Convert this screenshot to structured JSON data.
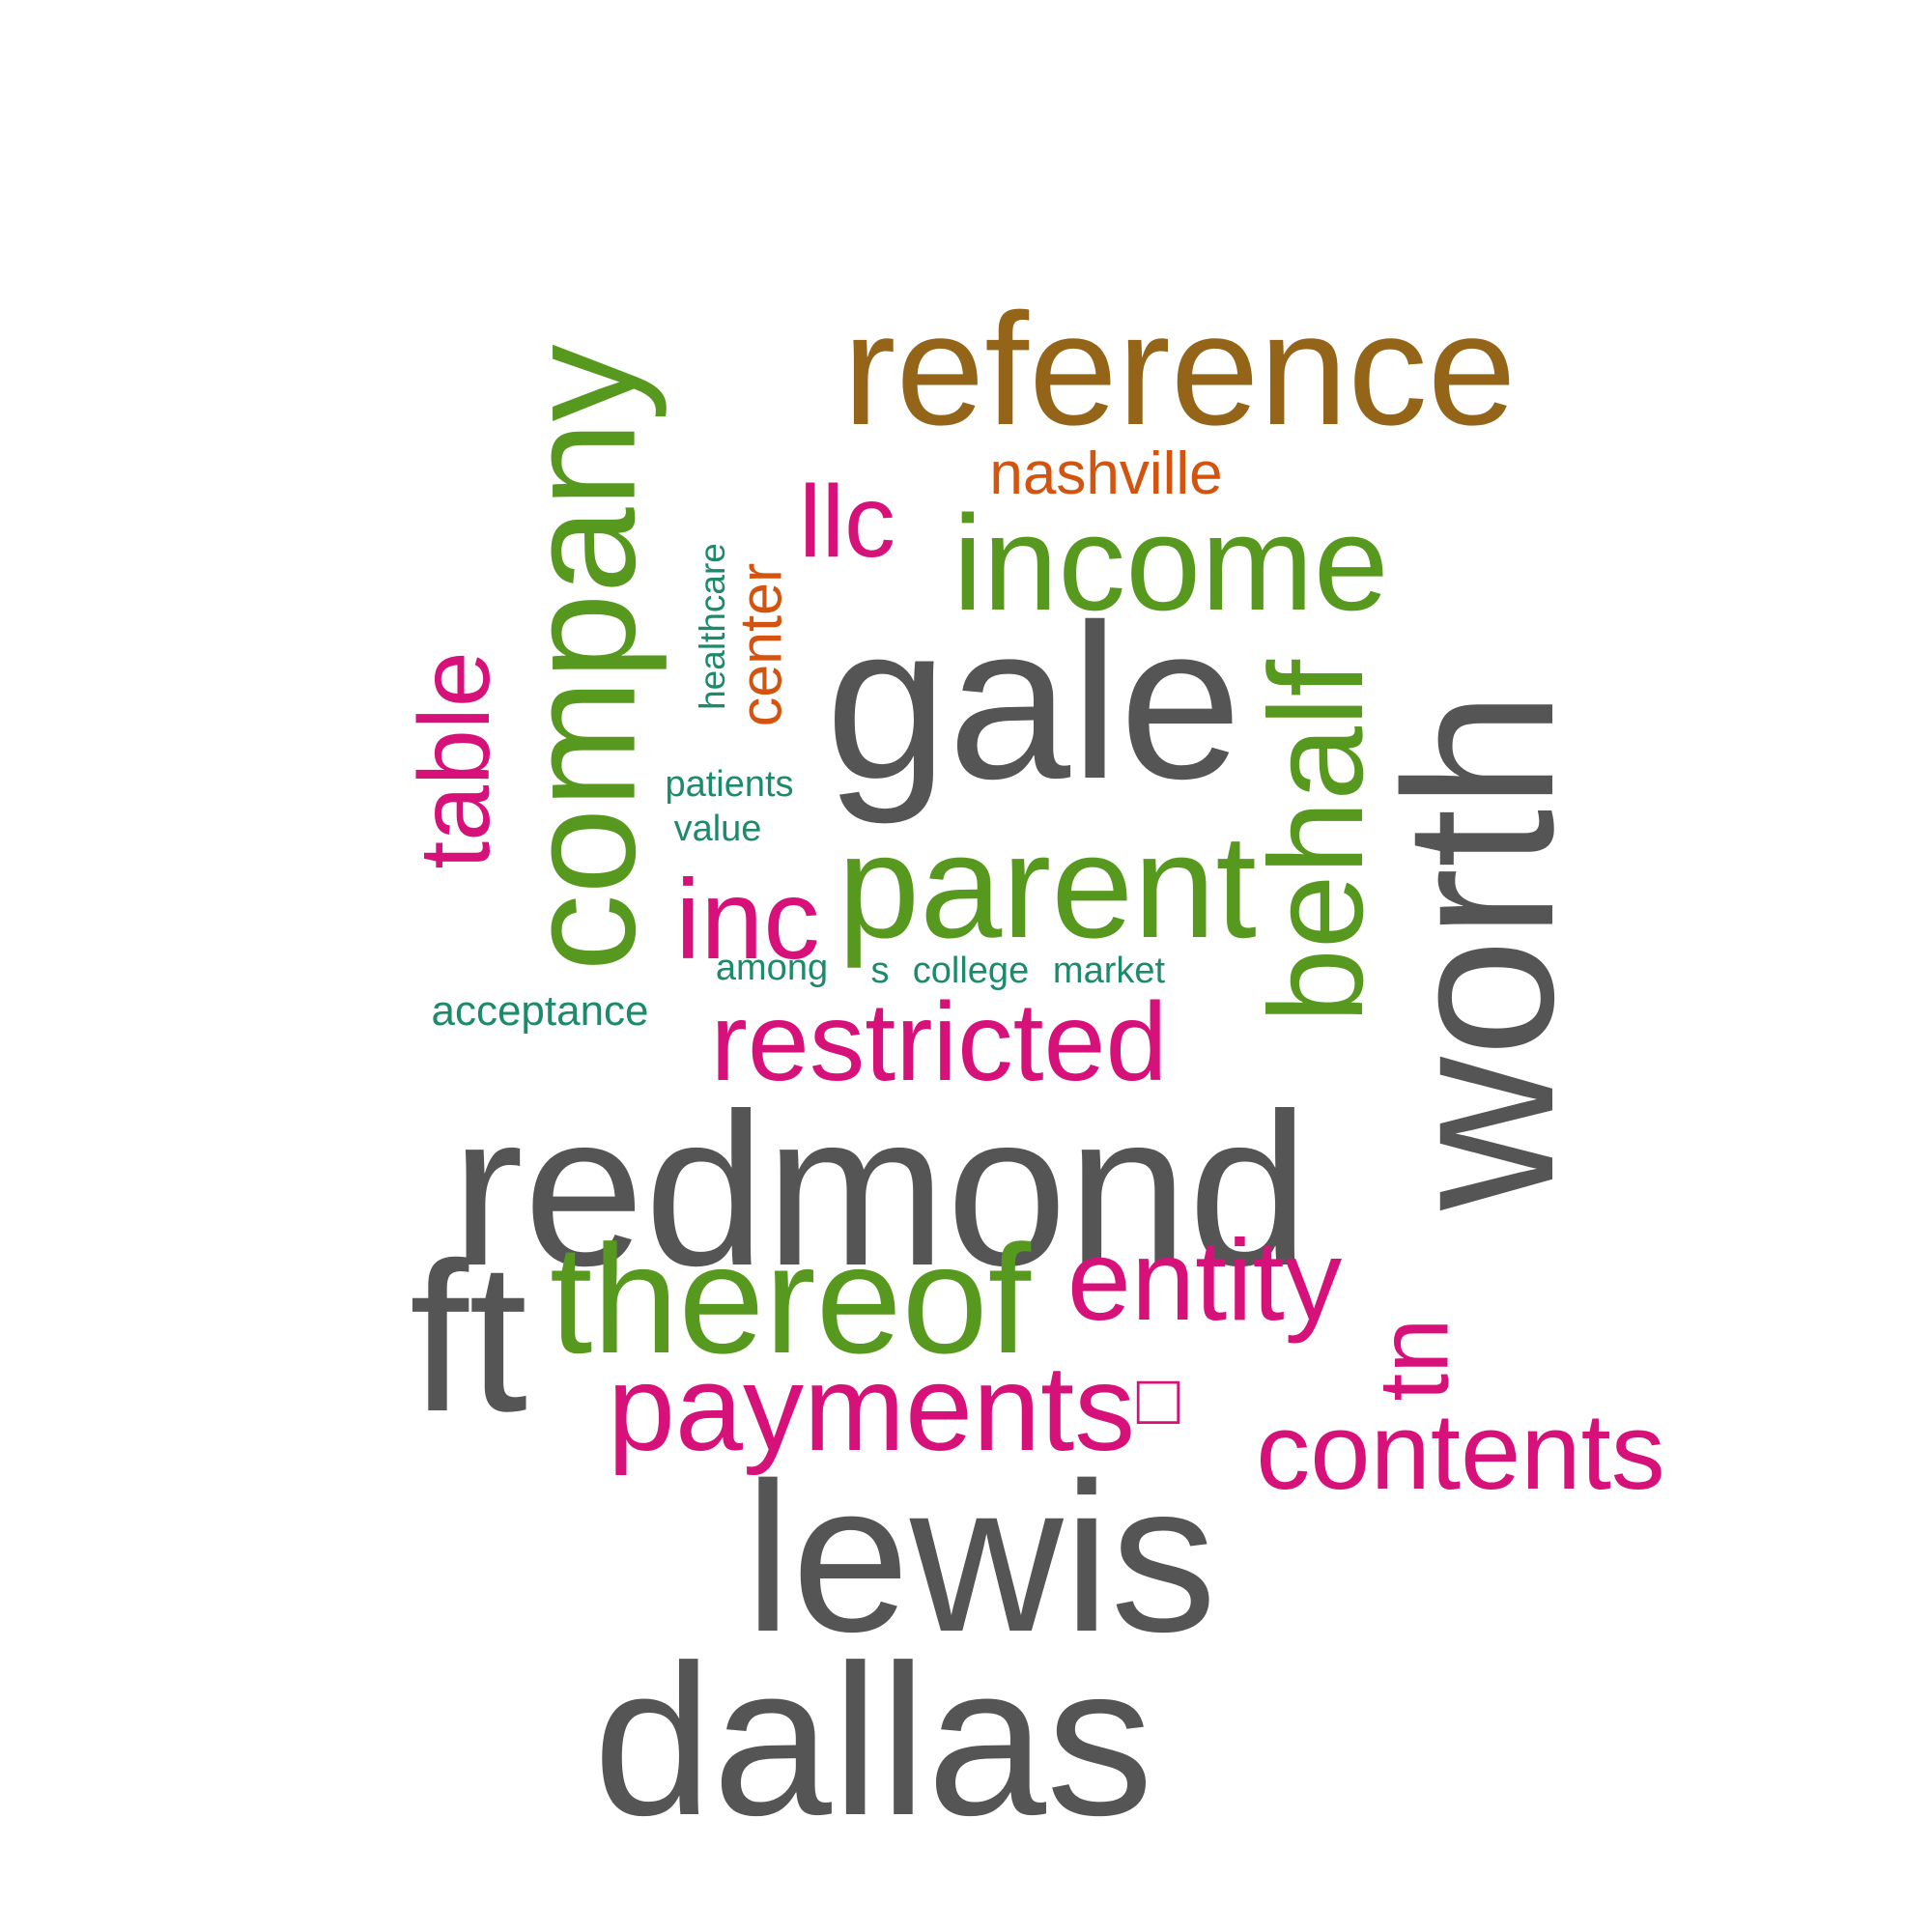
{
  "colors": {
    "gray": "#555555",
    "green": "#57991F",
    "magenta": "#D7117A",
    "brown": "#946519",
    "orange": "#D2540F",
    "teal": "#1E8A6C"
  },
  "words": [
    {
      "id": "reference",
      "text": "reference",
      "color": "brown"
    },
    {
      "id": "nashville",
      "text": "nashville",
      "color": "orange"
    },
    {
      "id": "llc",
      "text": "llc",
      "color": "magenta"
    },
    {
      "id": "income",
      "text": "income",
      "color": "green"
    },
    {
      "id": "company",
      "text": "company",
      "color": "green"
    },
    {
      "id": "healthcare",
      "text": "healthcare",
      "color": "teal"
    },
    {
      "id": "center",
      "text": "center",
      "color": "orange"
    },
    {
      "id": "gale",
      "text": "gale",
      "color": "gray"
    },
    {
      "id": "behalf",
      "text": "behalf",
      "color": "green"
    },
    {
      "id": "worth",
      "text": "worth",
      "color": "gray"
    },
    {
      "id": "table",
      "text": "table",
      "color": "magenta"
    },
    {
      "id": "patients",
      "text": "patients",
      "color": "teal"
    },
    {
      "id": "value",
      "text": "value",
      "color": "teal"
    },
    {
      "id": "parent",
      "text": "parent",
      "color": "green"
    },
    {
      "id": "inc",
      "text": "inc",
      "color": "magenta"
    },
    {
      "id": "among",
      "text": "among",
      "color": "teal"
    },
    {
      "id": "s",
      "text": "s",
      "color": "teal"
    },
    {
      "id": "college",
      "text": "college",
      "color": "teal"
    },
    {
      "id": "market",
      "text": "market",
      "color": "teal"
    },
    {
      "id": "acceptance",
      "text": "acceptance",
      "color": "teal"
    },
    {
      "id": "restricted",
      "text": "restricted",
      "color": "magenta"
    },
    {
      "id": "redmond",
      "text": "redmond",
      "color": "gray"
    },
    {
      "id": "ft",
      "text": "ft",
      "color": "gray"
    },
    {
      "id": "thereof",
      "text": "thereof",
      "color": "green"
    },
    {
      "id": "entity",
      "text": "entity",
      "color": "magenta"
    },
    {
      "id": "tn",
      "text": "tn",
      "color": "magenta"
    },
    {
      "id": "payments",
      "text": "payments",
      "color": "magenta"
    },
    {
      "id": "box",
      "text": "□",
      "color": "magenta"
    },
    {
      "id": "contents",
      "text": "contents",
      "color": "magenta"
    },
    {
      "id": "lewis",
      "text": "lewis",
      "color": "gray"
    },
    {
      "id": "dallas",
      "text": "dallas",
      "color": "gray"
    }
  ]
}
